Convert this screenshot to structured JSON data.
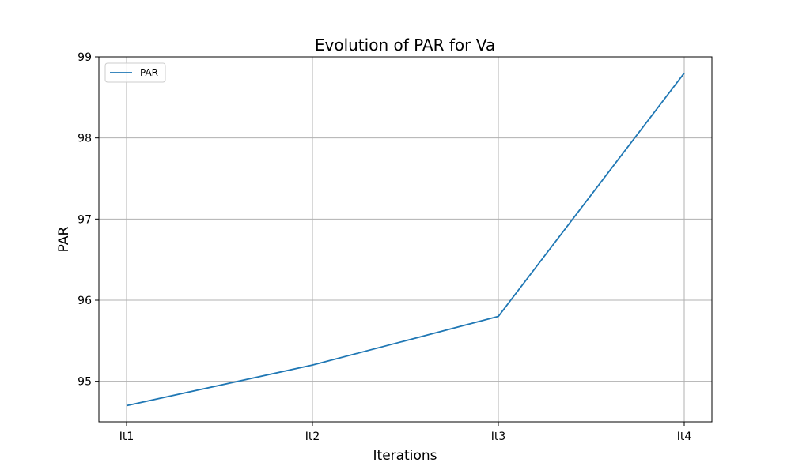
{
  "chart_data": {
    "type": "line",
    "title": "Evolution of PAR for Va",
    "xlabel": "Iterations",
    "ylabel": "PAR",
    "categories": [
      "It1",
      "It2",
      "It3",
      "It4"
    ],
    "series": [
      {
        "name": "PAR",
        "values": [
          94.7,
          95.2,
          95.8,
          98.8
        ]
      }
    ],
    "ylim": [
      94.5,
      99.0
    ],
    "yticks": [
      95,
      96,
      97,
      98,
      99
    ],
    "grid": true,
    "legend_position": "top-left",
    "colors": {
      "series": "#1f77b4",
      "grid": "#b0b0b0"
    }
  }
}
